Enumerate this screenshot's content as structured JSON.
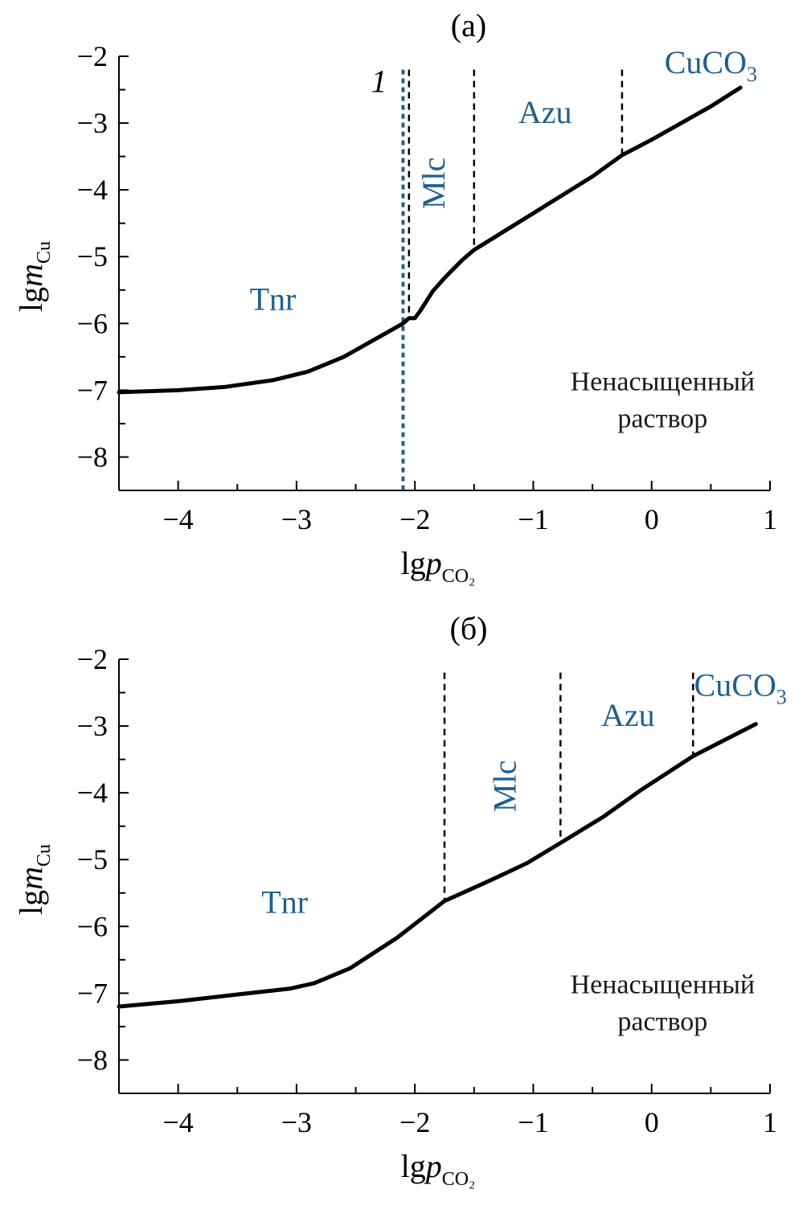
{
  "colors": {
    "curve": "#000000",
    "axis": "#000000",
    "label_blue": "#1f5f8f",
    "marker_blue": "#1f5f8f",
    "boundary": "#000000"
  },
  "chart_data": [
    {
      "type": "line",
      "title": "(а)",
      "xlabel": "lgp",
      "xlabel_sub": "CO₂",
      "ylabel": "lgm",
      "ylabel_sub": "Cu",
      "xlim": [
        -4.5,
        1
      ],
      "ylim": [
        -8.5,
        -2
      ],
      "xticks": [
        -4,
        -3,
        -2,
        -1,
        0,
        1
      ],
      "xtick_labels": [
        "−4",
        "−3",
        "−2",
        "−1",
        "0",
        "1"
      ],
      "yticks": [
        -2,
        -3,
        -4,
        -5,
        -6,
        -7,
        -8
      ],
      "ytick_labels": [
        "−2",
        "−3",
        "−4",
        "−5",
        "−6",
        "−7",
        "−8"
      ],
      "grid": false,
      "series": [
        {
          "x": [
            -4.5,
            -4.0,
            -3.6,
            -3.2,
            -2.9,
            -2.6,
            -2.3,
            -2.1,
            -2.05,
            -2.0,
            -1.95,
            -1.85,
            -1.75,
            -1.6,
            -1.5,
            -1.0,
            -0.5,
            -0.25,
            0.0,
            0.5,
            0.75
          ],
          "y": [
            -7.03,
            -7.0,
            -6.95,
            -6.85,
            -6.72,
            -6.5,
            -6.2,
            -6.0,
            -5.92,
            -5.92,
            -5.8,
            -5.52,
            -5.32,
            -5.05,
            -4.9,
            -4.35,
            -3.8,
            -3.48,
            -3.25,
            -2.75,
            -2.47
          ]
        }
      ],
      "boundaries": [
        {
          "x": -2.05,
          "y_from": -2.2,
          "y_to": -5.92
        },
        {
          "x": -1.5,
          "y_from": -2.2,
          "y_to": -4.9
        },
        {
          "x": -0.25,
          "y_from": -2.2,
          "y_to": -3.48
        }
      ],
      "marker_line": {
        "x": -2.1,
        "y_from": -2.2,
        "y_to": -8.6,
        "label": "1"
      },
      "regions": [
        {
          "name": "Tnr",
          "x": -3.2,
          "y": -5.8
        },
        {
          "name": "Mlc",
          "x": -1.75,
          "y": -3.9,
          "rotated": true
        },
        {
          "name": "Azu",
          "x": -0.9,
          "y": -3.0
        },
        {
          "name": "CuCO",
          "sub": "3",
          "x": 0.5,
          "y": -2.25
        }
      ],
      "note": [
        "Ненасыщенный",
        "раствор"
      ],
      "note_pos": {
        "x": 0.5,
        "y": -7.0
      }
    },
    {
      "type": "line",
      "title": "(б)",
      "xlabel": "lgp",
      "xlabel_sub": "CO₂",
      "ylabel": "lgm",
      "ylabel_sub": "Cu",
      "xlim": [
        -4.5,
        1
      ],
      "ylim": [
        -8.5,
        -2
      ],
      "xticks": [
        -4,
        -3,
        -2,
        -1,
        0,
        1
      ],
      "xtick_labels": [
        "−4",
        "−3",
        "−2",
        "−1",
        "0",
        "1"
      ],
      "yticks": [
        -2,
        -3,
        -4,
        -5,
        -6,
        -7,
        -8
      ],
      "ytick_labels": [
        "−2",
        "−3",
        "−4",
        "−5",
        "−6",
        "−7",
        "−8"
      ],
      "grid": false,
      "series": [
        {
          "x": [
            -4.5,
            -4.0,
            -3.5,
            -3.05,
            -2.85,
            -2.55,
            -2.15,
            -1.75,
            -1.6,
            -1.35,
            -1.05,
            -0.77,
            -0.4,
            -0.1,
            0.35,
            0.88
          ],
          "y": [
            -7.2,
            -7.12,
            -7.02,
            -6.93,
            -6.85,
            -6.63,
            -6.17,
            -5.62,
            -5.5,
            -5.3,
            -5.05,
            -4.75,
            -4.35,
            -3.97,
            -3.45,
            -2.97
          ]
        }
      ],
      "boundaries": [
        {
          "x": -1.75,
          "y_from": -2.2,
          "y_to": -5.62
        },
        {
          "x": -0.77,
          "y_from": -2.2,
          "y_to": -4.75
        },
        {
          "x": 0.35,
          "y_from": -2.2,
          "y_to": -3.45
        }
      ],
      "regions": [
        {
          "name": "Tnr",
          "x": -3.1,
          "y": -5.8
        },
        {
          "name": "Mlc",
          "x": -1.15,
          "y": -3.9,
          "rotated": true
        },
        {
          "name": "Azu",
          "x": -0.2,
          "y": -3.0
        },
        {
          "name": "CuCO",
          "sub": "3",
          "x": 0.75,
          "y": -2.55
        }
      ],
      "note": [
        "Ненасыщенный",
        "раствор"
      ],
      "note_pos": {
        "x": 0.5,
        "y": -7.0
      }
    }
  ]
}
